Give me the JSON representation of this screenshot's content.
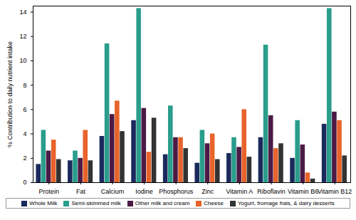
{
  "chart_data": {
    "type": "bar",
    "y_label": "% Contribution to daily nutrient intake",
    "categories": [
      "Protein",
      "Fat",
      "Calcium",
      "Iodine",
      "Phosphorus",
      "Zinc",
      "Vitamin A",
      "Riboflavin",
      "Vitamin B6",
      "Vitamin B12"
    ],
    "series": [
      {
        "name": "Whole Milk",
        "color": "#1b2a5c",
        "values": [
          1.5,
          1.8,
          3.8,
          5.1,
          2.3,
          1.6,
          2.4,
          3.7,
          2.0,
          4.8
        ]
      },
      {
        "name": "Semi-skimmed milk",
        "color": "#2a9d8c",
        "values": [
          4.3,
          2.6,
          11.4,
          14.3,
          6.3,
          4.3,
          3.7,
          11.3,
          5.1,
          14.3
        ]
      },
      {
        "name": "Other milk and cream",
        "color": "#4b1a45",
        "values": [
          2.6,
          2.0,
          5.6,
          6.1,
          3.7,
          3.2,
          2.9,
          5.5,
          3.1,
          5.8
        ]
      },
      {
        "name": "Cheese",
        "color": "#e8632b",
        "values": [
          3.5,
          4.3,
          6.7,
          2.5,
          3.7,
          4.0,
          6.0,
          2.8,
          0.8,
          5.1
        ]
      },
      {
        "name": "Yogurt, fromage frais, & dairy desserts",
        "color": "#333333",
        "values": [
          1.9,
          1.8,
          4.2,
          5.3,
          2.8,
          1.9,
          2.1,
          3.2,
          0.3,
          2.2
        ]
      }
    ],
    "ylim": [
      0,
      14.5
    ],
    "yticks": [
      0,
      2,
      4,
      6,
      8,
      10,
      12,
      14
    ],
    "grid": false,
    "legend": "bottom"
  }
}
